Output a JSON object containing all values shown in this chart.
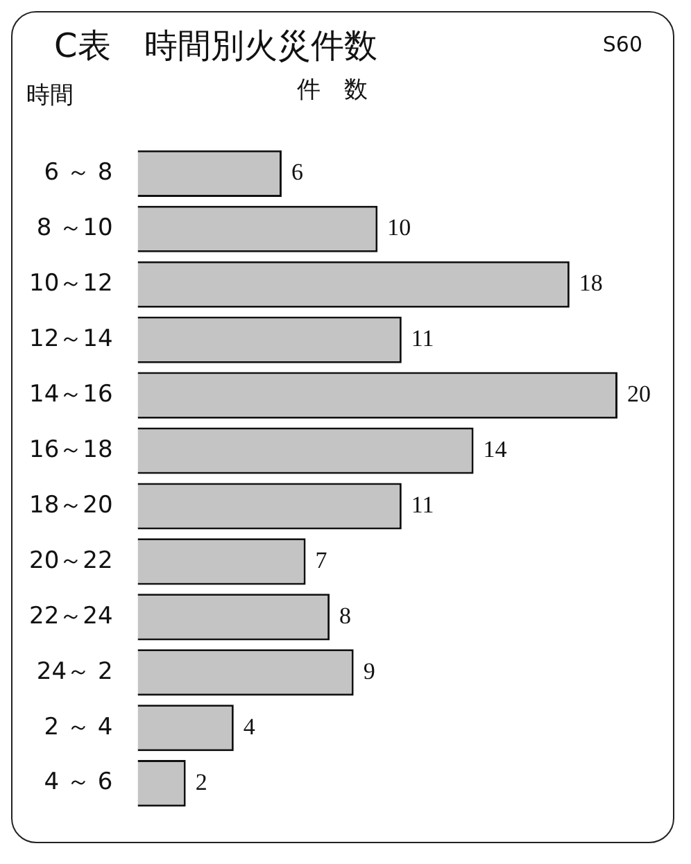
{
  "chart_data": {
    "type": "bar",
    "orientation": "horizontal",
    "title": "C表　時間別火災件数",
    "annotations": [
      "S60"
    ],
    "ylabel": "時間",
    "xlabel": "件　数",
    "categories": [
      "6 ～ 8",
      "8 ～10",
      "10～12",
      "12～14",
      "14～16",
      "16～18",
      "18～20",
      "20～22",
      "22～24",
      "24～ 2",
      "2 ～ 4",
      "4 ～ 6"
    ],
    "values": [
      6,
      10,
      18,
      11,
      20,
      14,
      11,
      7,
      8,
      9,
      4,
      2
    ],
    "color": "#c4c4c4",
    "data_labels": true
  }
}
